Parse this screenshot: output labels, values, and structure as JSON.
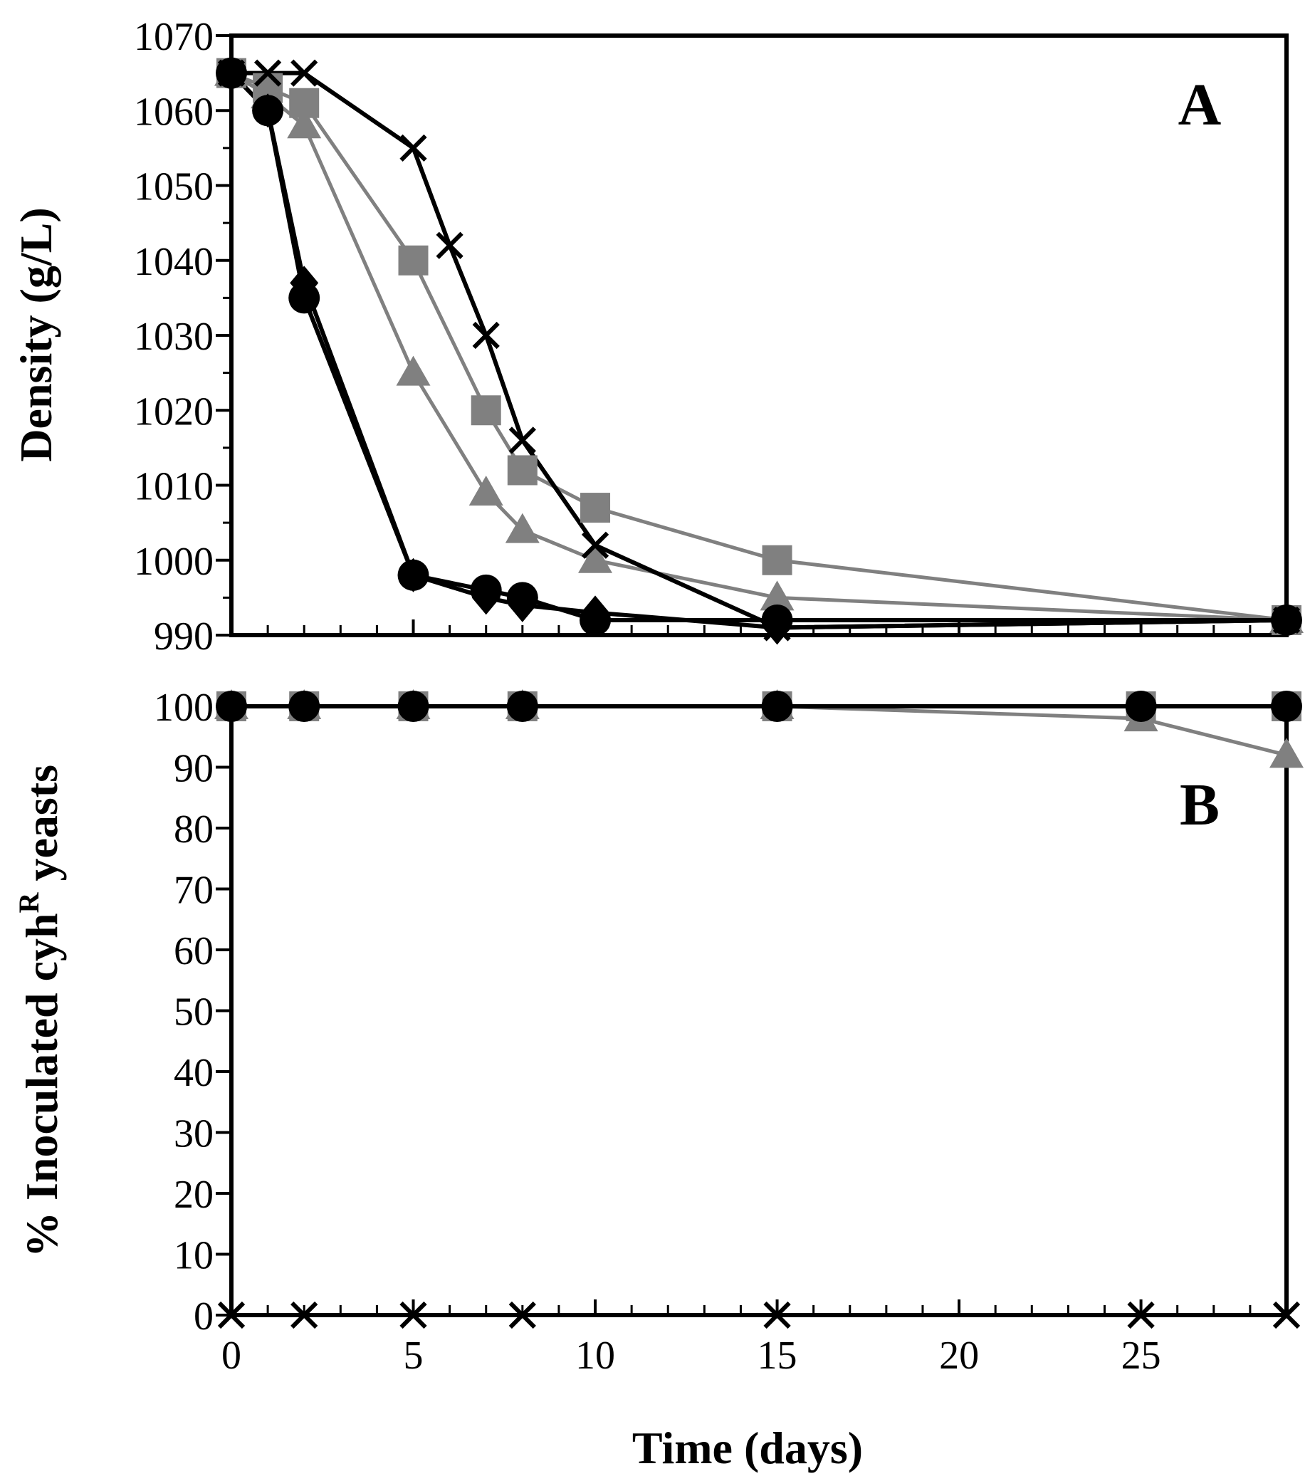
{
  "chart_data": [
    {
      "panel": "A",
      "type": "line",
      "ylabel": "Density (g/L)",
      "xlabel": "",
      "xlim": [
        0,
        29
      ],
      "ylim": [
        990,
        1070
      ],
      "yticks": [
        990,
        1000,
        1010,
        1020,
        1030,
        1040,
        1050,
        1060,
        1070
      ],
      "ytick_labels": [
        "990",
        "1000",
        "1010",
        "1020",
        "1030",
        "1040",
        "1050",
        "1060",
        "1070"
      ],
      "series": [
        {
          "name": "square",
          "marker": "square",
          "color": "#808080",
          "x": [
            0,
            1,
            2,
            5,
            7,
            8,
            10,
            15,
            29
          ],
          "y": [
            1065,
            1063,
            1061,
            1040,
            1020,
            1012,
            1007,
            1000,
            992
          ]
        },
        {
          "name": "triangle",
          "marker": "triangle",
          "color": "#808080",
          "x": [
            0,
            1,
            2,
            5,
            7,
            8,
            10,
            15,
            29
          ],
          "y": [
            1065,
            1062,
            1058,
            1025,
            1009,
            1004,
            1000,
            995,
            992
          ]
        },
        {
          "name": "cross",
          "marker": "x",
          "color": "#000000",
          "x": [
            0,
            1,
            2,
            5,
            6,
            7,
            8,
            10,
            15,
            29
          ],
          "y": [
            1065,
            1065,
            1065,
            1055,
            1042,
            1030,
            1016,
            1002,
            991,
            992
          ]
        },
        {
          "name": "diamond",
          "marker": "diamond",
          "color": "#000000",
          "x": [
            0,
            1,
            2,
            5,
            7,
            8,
            10,
            15,
            29
          ],
          "y": [
            1065,
            1060,
            1037,
            998,
            995,
            994,
            993,
            991,
            992
          ]
        },
        {
          "name": "circle",
          "marker": "circle",
          "color": "#000000",
          "x": [
            0,
            1,
            2,
            5,
            7,
            8,
            10,
            15,
            29
          ],
          "y": [
            1065,
            1060,
            1035,
            998,
            996,
            995,
            992,
            992,
            992
          ]
        }
      ]
    },
    {
      "panel": "B",
      "type": "line",
      "ylabel": "% Inoculated cyhR yeasts",
      "ylabel_main": "% Inoculated cyh",
      "ylabel_sup": "R",
      "ylabel_tail": " yeasts",
      "xlabel": "Time (days)",
      "xlim": [
        0,
        29
      ],
      "ylim": [
        0,
        100
      ],
      "xticks": [
        0,
        5,
        10,
        15,
        20,
        25
      ],
      "xtick_labels": [
        "0",
        "5",
        "10",
        "15",
        "20",
        "25"
      ],
      "yticks": [
        0,
        10,
        20,
        30,
        40,
        50,
        60,
        70,
        80,
        90,
        100
      ],
      "ytick_labels": [
        "0",
        "10",
        "20",
        "30",
        "40",
        "50",
        "60",
        "70",
        "80",
        "90",
        "100"
      ],
      "series": [
        {
          "name": "square",
          "marker": "square",
          "color": "#808080",
          "x": [
            0,
            2,
            5,
            8,
            15,
            25,
            29
          ],
          "y": [
            100,
            100,
            100,
            100,
            100,
            100,
            100
          ]
        },
        {
          "name": "triangle",
          "marker": "triangle",
          "color": "#808080",
          "x": [
            0,
            2,
            5,
            8,
            15,
            25,
            29
          ],
          "y": [
            100,
            100,
            100,
            100,
            100,
            98,
            92
          ]
        },
        {
          "name": "circle",
          "marker": "circle",
          "color": "#000000",
          "x": [
            0,
            2,
            5,
            8,
            15,
            25,
            29
          ],
          "y": [
            100,
            100,
            100,
            100,
            100,
            100,
            100
          ]
        },
        {
          "name": "cross",
          "marker": "x",
          "color": "#000000",
          "x": [
            0,
            2,
            5,
            8,
            15,
            25,
            29
          ],
          "y": [
            0,
            0,
            0,
            0,
            0,
            0,
            0
          ]
        }
      ]
    }
  ]
}
